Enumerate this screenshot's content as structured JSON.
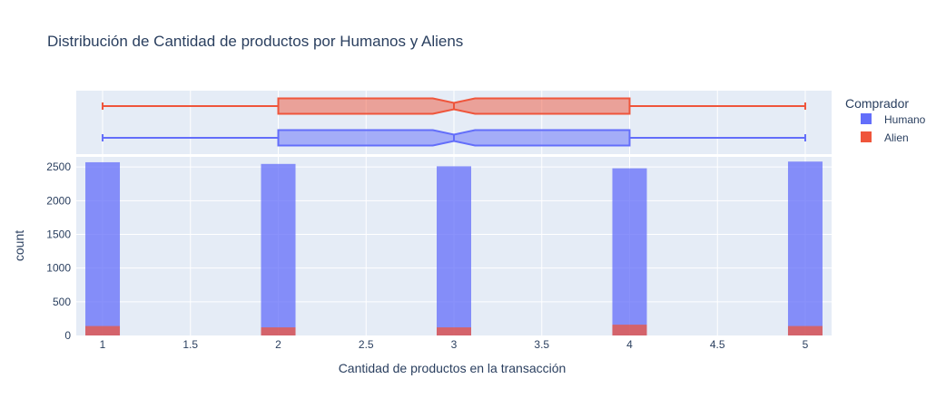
{
  "chart_data": {
    "type": "bar",
    "title": "Distribución de Cantidad de productos por Humanos y Aliens",
    "xlabel": "Cantidad de productos en la transacción",
    "ylabel": "count",
    "xlim": [
      0.85,
      5.15
    ],
    "ylim": [
      0,
      2650
    ],
    "x_ticks": [
      "1",
      "1.5",
      "2",
      "2.5",
      "3",
      "3.5",
      "4",
      "4.5",
      "5"
    ],
    "y_ticks": [
      "0",
      "500",
      "1000",
      "1500",
      "2000",
      "2500"
    ],
    "categories": [
      1,
      2,
      3,
      4,
      5
    ],
    "barmode": "overlay",
    "legend_title": "Comprador",
    "legend_position": "right",
    "series": [
      {
        "name": "Humano",
        "color": "#636efa",
        "values": [
          2570,
          2545,
          2510,
          2480,
          2580
        ]
      },
      {
        "name": "Alien",
        "color": "#ef553b",
        "values": [
          140,
          120,
          120,
          160,
          140
        ]
      }
    ],
    "marginal_boxplots": [
      {
        "name": "Humano",
        "color": "#636efa",
        "min": 1,
        "q1": 2,
        "median": 3,
        "q3": 4,
        "max": 5,
        "notched": true
      },
      {
        "name": "Alien",
        "color": "#ef553b",
        "min": 1,
        "q1": 2,
        "median": 3,
        "q3": 4,
        "max": 5,
        "notched": true
      }
    ]
  }
}
